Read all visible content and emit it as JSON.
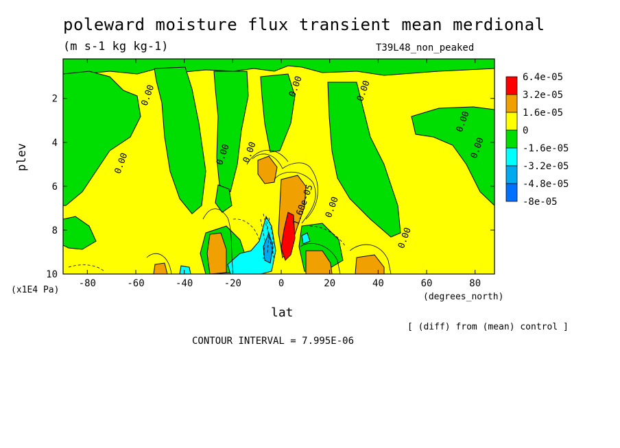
{
  "chart_data": {
    "type": "heatmap",
    "title": "poleward moisture flux transient mean merdional",
    "units": "(m s-1 kg kg-1)",
    "experiment": "T39L48_non_peaked",
    "xlabel": "lat",
    "x_unit_label": "(degrees_north)",
    "ylabel": "plev",
    "y_unit_label": "(x1E4 Pa)",
    "note": "[ (diff) from (mean) control ]",
    "contour_interval_label": "CONTOUR INTERVAL = 7.995E-06",
    "xlim": [
      -90,
      88
    ],
    "ylim": [
      10,
      0.2
    ],
    "x_ticks": [
      -80,
      -60,
      -40,
      -20,
      0,
      20,
      40,
      60,
      80
    ],
    "x_tick_labels": [
      "-80",
      "-60",
      "-40",
      "-20",
      "0",
      "20",
      "40",
      "60",
      "80"
    ],
    "y_ticks": [
      2,
      4,
      6,
      8,
      10
    ],
    "y_tick_labels": [
      "2",
      "4",
      "6",
      "8",
      "10"
    ],
    "legend": {
      "placement": "right",
      "labels": [
        "6.4e-05",
        "3.2e-05",
        "1.6e-05",
        "0",
        "-1.6e-05",
        "-3.2e-05",
        "-4.8e-05",
        "-8e-05"
      ],
      "colors": [
        "#ff0000",
        "#f0a000",
        "#ffff00",
        "#00dd00",
        "#00ffff",
        "#00aaee",
        "#0070ff"
      ]
    },
    "contour_labels": [
      {
        "text": "0.00",
        "lat": 35,
        "plev": 1.7
      },
      {
        "text": "0.00",
        "lat": -54,
        "plev": 1.9
      },
      {
        "text": "0.00",
        "lat": 7,
        "plev": 1.5
      },
      {
        "text": "0.00",
        "lat": -65,
        "plev": 5.0
      },
      {
        "text": "0.00",
        "lat": -23,
        "plev": 4.6
      },
      {
        "text": "0.00",
        "lat": -12,
        "plev": 4.5
      },
      {
        "text": "0.00",
        "lat": 22,
        "plev": 7.0
      },
      {
        "text": "0.00",
        "lat": 76,
        "plev": 3.1
      },
      {
        "text": "0.00",
        "lat": 82,
        "plev": 4.3
      },
      {
        "text": "0.00",
        "lat": 52,
        "plev": 8.4
      },
      {
        "text": "1.60e-05",
        "lat": 10,
        "plev": 6.9
      }
    ]
  }
}
